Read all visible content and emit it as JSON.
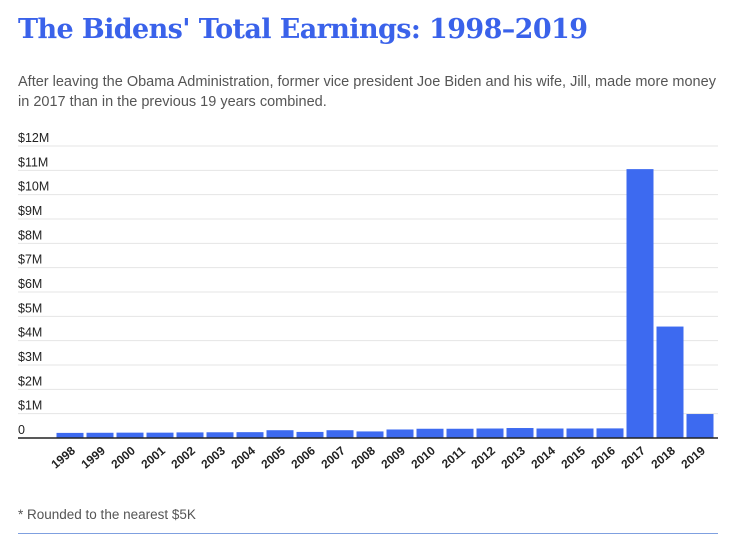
{
  "title": "The Bidens' Total Earnings: 1998–2019",
  "subtitle": "After leaving the Obama Administration, former vice president Joe Biden and his wife, Jill, made more money in 2017 than in the previous 19 years combined.",
  "footnote": "* Rounded to the nearest $5K",
  "colors": {
    "bar": "#3d6af0",
    "title": "#3a62ea",
    "grid": "#e4e4e4",
    "axis": "#222222",
    "text": "#555555"
  },
  "chart_data": {
    "type": "bar",
    "title": "The Bidens' Total Earnings: 1998–2019",
    "xlabel": "",
    "ylabel": "",
    "ylim": [
      0,
      12000000
    ],
    "grid": true,
    "y_ticks": [
      {
        "value": 0,
        "label": "0"
      },
      {
        "value": 1000000,
        "label": "$1M"
      },
      {
        "value": 2000000,
        "label": "$2M"
      },
      {
        "value": 3000000,
        "label": "$3M"
      },
      {
        "value": 4000000,
        "label": "$4M"
      },
      {
        "value": 5000000,
        "label": "$5M"
      },
      {
        "value": 6000000,
        "label": "$6M"
      },
      {
        "value": 7000000,
        "label": "$7M"
      },
      {
        "value": 8000000,
        "label": "$8M"
      },
      {
        "value": 9000000,
        "label": "$9M"
      },
      {
        "value": 10000000,
        "label": "$10M"
      },
      {
        "value": 11000000,
        "label": "$11M"
      },
      {
        "value": 12000000,
        "label": "$12M"
      }
    ],
    "categories": [
      "1998",
      "1999",
      "2000",
      "2001",
      "2002",
      "2003",
      "2004",
      "2005",
      "2006",
      "2007",
      "2008",
      "2009",
      "2010",
      "2011",
      "2012",
      "2013",
      "2014",
      "2015",
      "2016",
      "2017",
      "2018",
      "2019"
    ],
    "values": [
      210000,
      215000,
      220000,
      220000,
      230000,
      235000,
      240000,
      320000,
      250000,
      320000,
      270000,
      350000,
      380000,
      380000,
      390000,
      410000,
      390000,
      390000,
      395000,
      11050000,
      4580000,
      985000
    ]
  }
}
